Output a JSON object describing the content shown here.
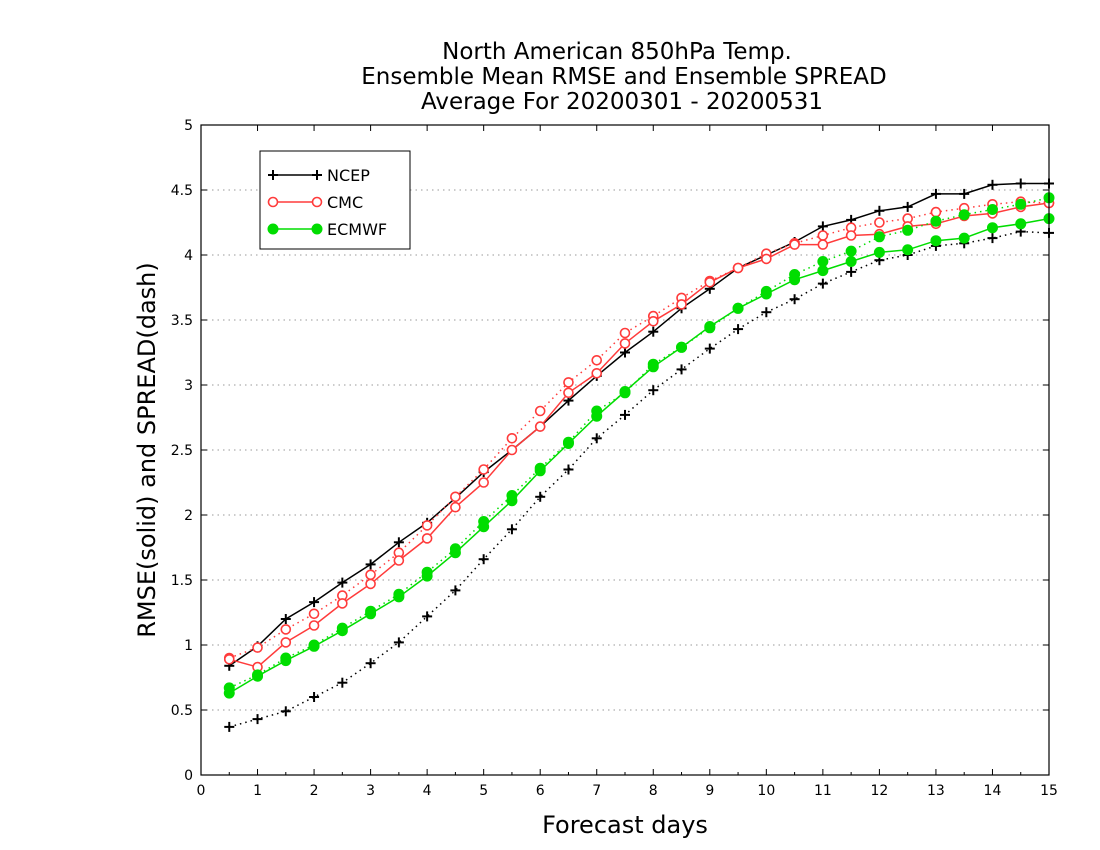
{
  "chart_data": {
    "type": "line",
    "title_lines": [
      "North American 850hPa Temp.",
      "Ensemble Mean RMSE and Ensemble SPREAD",
      "Average For 20200301 - 20200531"
    ],
    "xlabel": "Forecast days",
    "ylabel": "RMSE(solid) and SPREAD(dash)",
    "xlim": [
      0,
      15
    ],
    "ylim": [
      0,
      5
    ],
    "xticks": [
      "0",
      "1",
      "2",
      "3",
      "4",
      "5",
      "6",
      "7",
      "8",
      "9",
      "10",
      "11",
      "12",
      "13",
      "14",
      "15"
    ],
    "yticks": [
      "0",
      "0.5",
      "1",
      "1.5",
      "2",
      "2.5",
      "3",
      "3.5",
      "4",
      "4.5",
      "5"
    ],
    "grid": "horizontal-dotted",
    "legend_position": "top-left",
    "x": [
      0.5,
      1,
      1.5,
      2,
      2.5,
      3,
      3.5,
      4,
      4.5,
      5,
      5.5,
      6,
      6.5,
      7,
      7.5,
      8,
      8.5,
      9,
      9.5,
      10,
      10.5,
      11,
      11.5,
      12,
      12.5,
      13,
      13.5,
      14,
      14.5,
      15
    ],
    "series": [
      {
        "name": "NCEP",
        "color": "#000000",
        "marker": "plus",
        "rmse": [
          0.84,
          0.99,
          1.2,
          1.33,
          1.48,
          1.62,
          1.79,
          1.94,
          2.13,
          2.33,
          2.5,
          2.68,
          2.88,
          3.07,
          3.25,
          3.41,
          3.59,
          3.74,
          3.9,
          4.0,
          4.1,
          4.22,
          4.27,
          4.34,
          4.37,
          4.47,
          4.47,
          4.54,
          4.55,
          4.55
        ],
        "spread": [
          0.37,
          0.43,
          0.49,
          0.6,
          0.71,
          0.86,
          1.02,
          1.22,
          1.42,
          1.66,
          1.89,
          2.14,
          2.35,
          2.59,
          2.77,
          2.96,
          3.12,
          3.28,
          3.43,
          3.56,
          3.66,
          3.78,
          3.87,
          3.96,
          4.0,
          4.07,
          4.09,
          4.13,
          4.18,
          4.17
        ]
      },
      {
        "name": "CMC",
        "color": "#ff3b3b",
        "marker": "open-circle",
        "rmse": [
          0.89,
          0.83,
          1.02,
          1.15,
          1.32,
          1.47,
          1.65,
          1.82,
          2.06,
          2.25,
          2.5,
          2.68,
          2.94,
          3.09,
          3.32,
          3.49,
          3.62,
          3.79,
          3.9,
          3.97,
          4.08,
          4.08,
          4.15,
          4.16,
          4.22,
          4.24,
          4.3,
          4.32,
          4.37,
          4.4
        ],
        "spread": [
          0.9,
          0.98,
          1.12,
          1.24,
          1.38,
          1.54,
          1.71,
          1.92,
          2.14,
          2.35,
          2.59,
          2.8,
          3.02,
          3.19,
          3.4,
          3.53,
          3.67,
          3.8,
          3.9,
          4.01,
          4.09,
          4.15,
          4.21,
          4.25,
          4.28,
          4.33,
          4.36,
          4.39,
          4.41,
          4.4
        ]
      },
      {
        "name": "ECMWF",
        "color": "#00dd00",
        "marker": "filled-circle",
        "rmse": [
          0.63,
          0.76,
          0.88,
          0.99,
          1.11,
          1.24,
          1.37,
          1.53,
          1.71,
          1.91,
          2.11,
          2.34,
          2.55,
          2.76,
          2.95,
          3.14,
          3.29,
          3.45,
          3.59,
          3.7,
          3.81,
          3.88,
          3.95,
          4.02,
          4.04,
          4.11,
          4.13,
          4.21,
          4.24,
          4.28
        ],
        "spread": [
          0.67,
          0.77,
          0.9,
          1.0,
          1.13,
          1.26,
          1.39,
          1.56,
          1.74,
          1.95,
          2.15,
          2.36,
          2.56,
          2.8,
          2.94,
          3.16,
          3.29,
          3.44,
          3.59,
          3.72,
          3.85,
          3.95,
          4.03,
          4.14,
          4.19,
          4.26,
          4.31,
          4.35,
          4.39,
          4.44
        ]
      }
    ]
  }
}
